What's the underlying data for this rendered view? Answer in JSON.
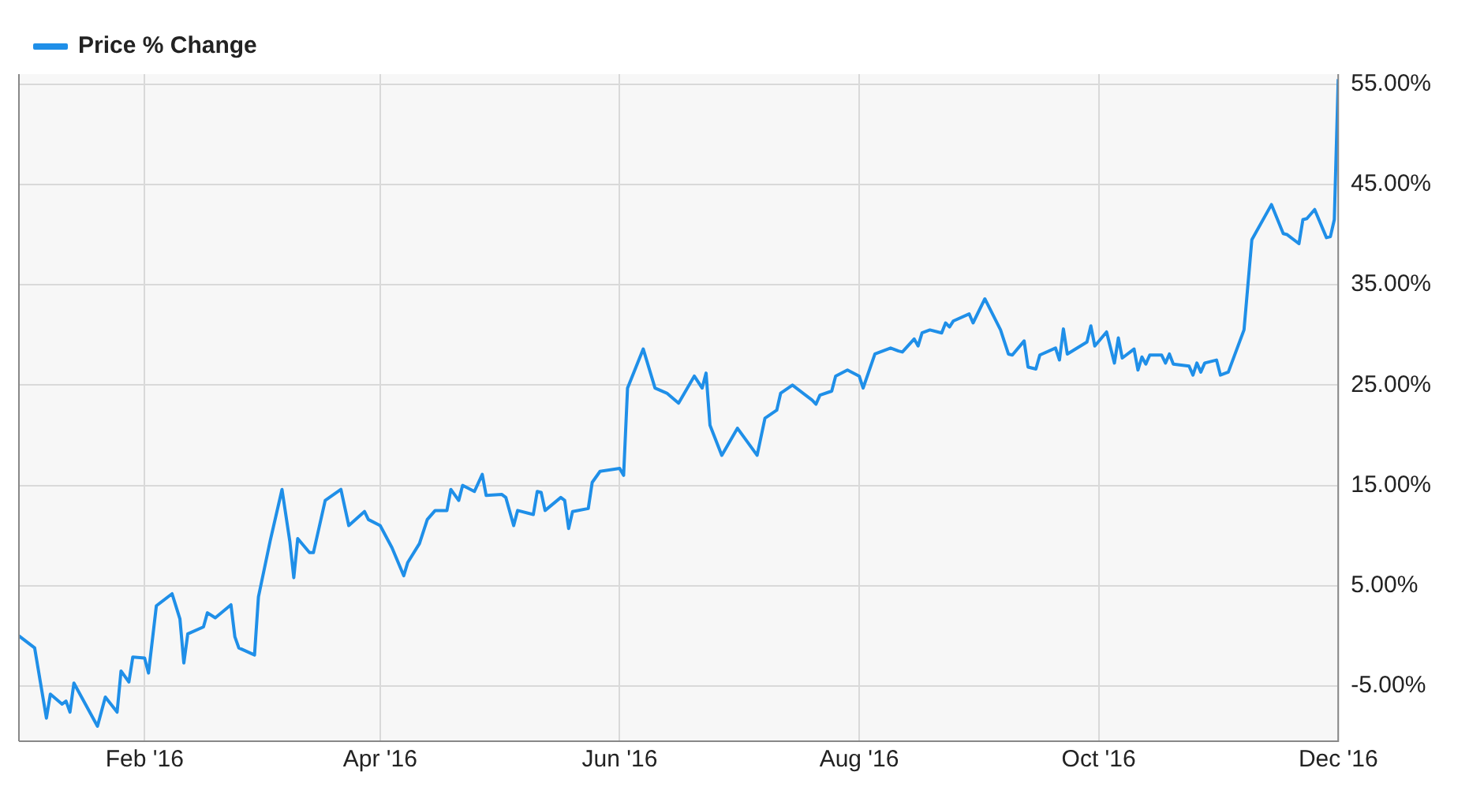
{
  "chart_data": {
    "type": "line",
    "legend": "top left",
    "grid": true,
    "marker": "none",
    "line_style": "solid",
    "xlim": [
      "2015-12-31",
      "2016-12-01"
    ],
    "xticks": [
      {
        "value": "2016-02-01",
        "label": "Feb '16"
      },
      {
        "value": "2016-04-01",
        "label": "Apr '16"
      },
      {
        "value": "2016-06-01",
        "label": "Jun '16"
      },
      {
        "value": "2016-08-01",
        "label": "Aug '16"
      },
      {
        "value": "2016-10-01",
        "label": "Oct '16"
      },
      {
        "value": "2016-12-01",
        "label": "Dec '16"
      }
    ],
    "ylim": [
      -10.5,
      56
    ],
    "yticks": [
      {
        "value": -5,
        "label": "-5.00%"
      },
      {
        "value": 5,
        "label": "5.00%"
      },
      {
        "value": 15,
        "label": "15.00%"
      },
      {
        "value": 25,
        "label": "25.00%"
      },
      {
        "value": 35,
        "label": "35.00%"
      },
      {
        "value": 45,
        "label": "45.00%"
      },
      {
        "value": 55,
        "label": "55.00%"
      }
    ],
    "series": [
      {
        "name": "Price % Change",
        "color": "#1f8fe8",
        "x": [
          "2015-12-31",
          "2016-01-04",
          "2016-01-07",
          "2016-01-08",
          "2016-01-11",
          "2016-01-12",
          "2016-01-13",
          "2016-01-14",
          "2016-01-20",
          "2016-01-22",
          "2016-01-25",
          "2016-01-26",
          "2016-01-28",
          "2016-01-29",
          "2016-02-01",
          "2016-02-02",
          "2016-02-04",
          "2016-02-08",
          "2016-02-10",
          "2016-02-11",
          "2016-02-12",
          "2016-02-16",
          "2016-02-17",
          "2016-02-19",
          "2016-02-23",
          "2016-02-24",
          "2016-02-25",
          "2016-02-29",
          "2016-03-01",
          "2016-03-04",
          "2016-03-07",
          "2016-03-09",
          "2016-03-10",
          "2016-03-11",
          "2016-03-14",
          "2016-03-15",
          "2016-03-18",
          "2016-03-22",
          "2016-03-24",
          "2016-03-28",
          "2016-03-29",
          "2016-04-01",
          "2016-04-04",
          "2016-04-07",
          "2016-04-08",
          "2016-04-11",
          "2016-04-13",
          "2016-04-15",
          "2016-04-18",
          "2016-04-19",
          "2016-04-21",
          "2016-04-22",
          "2016-04-25",
          "2016-04-27",
          "2016-04-28",
          "2016-05-02",
          "2016-05-03",
          "2016-05-05",
          "2016-05-06",
          "2016-05-10",
          "2016-05-11",
          "2016-05-12",
          "2016-05-13",
          "2016-05-17",
          "2016-05-18",
          "2016-05-19",
          "2016-05-20",
          "2016-05-24",
          "2016-05-25",
          "2016-05-27",
          "2016-06-01",
          "2016-06-02",
          "2016-06-03",
          "2016-06-07",
          "2016-06-10",
          "2016-06-13",
          "2016-06-16",
          "2016-06-20",
          "2016-06-22",
          "2016-06-23",
          "2016-06-24",
          "2016-06-27",
          "2016-07-01",
          "2016-07-06",
          "2016-07-08",
          "2016-07-11",
          "2016-07-12",
          "2016-07-15",
          "2016-07-20",
          "2016-07-21",
          "2016-07-22",
          "2016-07-25",
          "2016-07-26",
          "2016-07-29",
          "2016-08-01",
          "2016-08-02",
          "2016-08-05",
          "2016-08-09",
          "2016-08-11",
          "2016-08-12",
          "2016-08-15",
          "2016-08-16",
          "2016-08-17",
          "2016-08-19",
          "2016-08-22",
          "2016-08-23",
          "2016-08-24",
          "2016-08-25",
          "2016-08-29",
          "2016-08-30",
          "2016-09-02",
          "2016-09-06",
          "2016-09-08",
          "2016-09-09",
          "2016-09-12",
          "2016-09-13",
          "2016-09-15",
          "2016-09-16",
          "2016-09-20",
          "2016-09-21",
          "2016-09-22",
          "2016-09-23",
          "2016-09-28",
          "2016-09-29",
          "2016-09-30",
          "2016-10-03",
          "2016-10-05",
          "2016-10-06",
          "2016-10-07",
          "2016-10-10",
          "2016-10-11",
          "2016-10-12",
          "2016-10-13",
          "2016-10-14",
          "2016-10-17",
          "2016-10-18",
          "2016-10-19",
          "2016-10-20",
          "2016-10-24",
          "2016-10-25",
          "2016-10-26",
          "2016-10-27",
          "2016-10-28",
          "2016-10-31",
          "2016-11-01",
          "2016-11-03",
          "2016-11-07",
          "2016-11-09",
          "2016-11-14",
          "2016-11-17",
          "2016-11-18",
          "2016-11-21",
          "2016-11-22",
          "2016-11-23",
          "2016-11-25",
          "2016-11-28",
          "2016-11-29",
          "2016-11-30",
          "2016-12-01"
        ],
        "values": [
          0,
          -1.2,
          -8.2,
          -5.8,
          -6.8,
          -6.5,
          -7.6,
          -4.7,
          -9,
          -6.1,
          -7.6,
          -3.5,
          -4.6,
          -2.1,
          -2.2,
          -3.7,
          3,
          4.2,
          1.7,
          -2.7,
          0.2,
          0.9,
          2.3,
          1.8,
          3.1,
          -0.1,
          -1.2,
          -1.9,
          3.9,
          9.5,
          14.6,
          9.4,
          5.8,
          9.7,
          8.3,
          8.3,
          13.5,
          14.6,
          11,
          12.4,
          11.6,
          11,
          8.8,
          6,
          7.3,
          9.2,
          11.6,
          12.5,
          12.5,
          14.6,
          13.5,
          15,
          14.4,
          16.1,
          14,
          14.1,
          13.8,
          11,
          12.5,
          12.1,
          14.4,
          14.3,
          12.5,
          13.8,
          13.5,
          10.7,
          12.4,
          12.7,
          15.3,
          16.4,
          16.7,
          16,
          24.7,
          28.6,
          24.7,
          24.2,
          23.2,
          25.9,
          24.7,
          26.2,
          21,
          18,
          20.7,
          18,
          21.7,
          22.5,
          24.2,
          25,
          23.5,
          23.1,
          24,
          24.4,
          25.9,
          26.5,
          25.9,
          24.7,
          28.1,
          28.7,
          28.4,
          28.3,
          29.6,
          28.9,
          30.2,
          30.5,
          30.2,
          31.2,
          30.8,
          31.4,
          32.1,
          31.2,
          33.6,
          30.5,
          28.1,
          28,
          29.4,
          26.8,
          26.6,
          28,
          28.7,
          27.5,
          30.6,
          28.1,
          29.3,
          30.9,
          28.9,
          30.3,
          27.2,
          29.7,
          27.7,
          28.6,
          26.5,
          27.8,
          27.1,
          28,
          28,
          27.2,
          28.1,
          27.1,
          26.9,
          26,
          27.2,
          26.3,
          27.2,
          27.5,
          26,
          26.3,
          30.5,
          39.5,
          43,
          40.1,
          40,
          39.1,
          41.5,
          41.6,
          42.5,
          39.7,
          39.8,
          41.5,
          55.5
        ]
      }
    ]
  }
}
